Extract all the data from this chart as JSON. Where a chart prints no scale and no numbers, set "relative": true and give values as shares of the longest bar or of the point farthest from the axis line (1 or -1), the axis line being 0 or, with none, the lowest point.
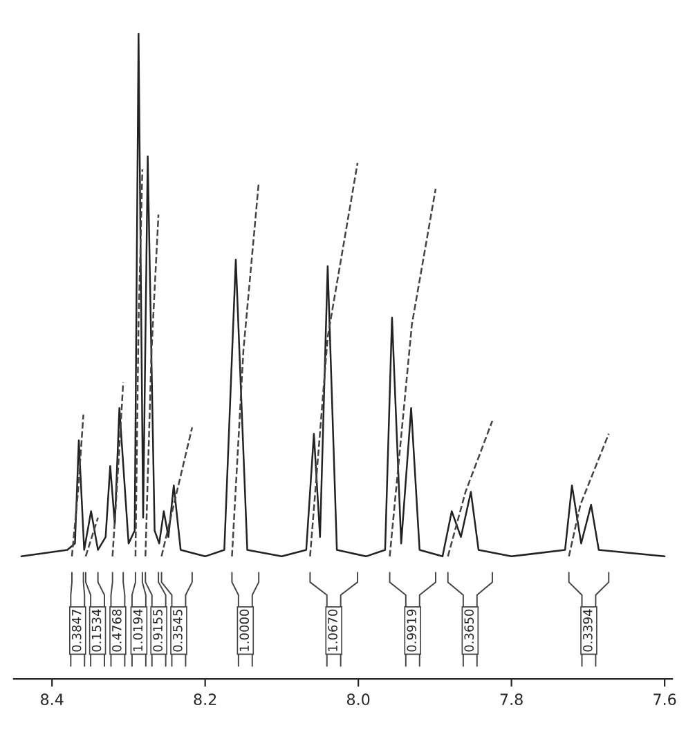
{
  "chart_data": {
    "type": "line",
    "relative": true,
    "xlim": [
      8.45,
      7.59
    ],
    "xticks": [
      8.4,
      8.2,
      {
        "value": 8.0,
        "label": "8.0"
      },
      7.8,
      7.6
    ],
    "tick_labels": "x",
    "grid": false,
    "marker": "none",
    "line_style": "solid",
    "series": [
      {
        "color": "#222222",
        "x": [
          8.44,
          8.38,
          8.37,
          8.365,
          8.358,
          8.349,
          8.34,
          8.33,
          8.324,
          8.318,
          8.312,
          8.3,
          8.292,
          8.287,
          8.281,
          8.275,
          8.266,
          8.26,
          8.254,
          8.248,
          8.241,
          8.232,
          8.2,
          8.175,
          8.16,
          8.145,
          8.1,
          8.068,
          8.058,
          8.05,
          8.04,
          8.028,
          7.99,
          7.965,
          7.956,
          7.944,
          7.931,
          7.92,
          7.89,
          7.878,
          7.866,
          7.853,
          7.843,
          7.8,
          7.73,
          7.721,
          7.709,
          7.696,
          7.686,
          7.6
        ],
        "values": [
          0.19,
          0.2,
          0.21,
          0.37,
          0.2,
          0.26,
          0.2,
          0.22,
          0.33,
          0.24,
          0.42,
          0.21,
          0.23,
          1.0,
          0.25,
          0.81,
          0.23,
          0.21,
          0.26,
          0.22,
          0.3,
          0.2,
          0.19,
          0.2,
          0.65,
          0.2,
          0.19,
          0.2,
          0.38,
          0.22,
          0.64,
          0.2,
          0.19,
          0.2,
          0.56,
          0.21,
          0.42,
          0.2,
          0.19,
          0.26,
          0.22,
          0.29,
          0.2,
          0.19,
          0.2,
          0.3,
          0.21,
          0.27,
          0.2,
          0.19
        ]
      },
      {
        "color": "#444444",
        "line_style": "dashed",
        "x": [
          8.374,
          8.366,
          8.359,
          8.357,
          8.356,
          8.348,
          8.34,
          8.33,
          8.321,
          8.314,
          8.307,
          8.299,
          8.291,
          8.287,
          8.282,
          8.28,
          8.278,
          8.27,
          8.261,
          8.259,
          8.257,
          8.237,
          8.217,
          8.19,
          8.165,
          8.15,
          8.13,
          8.1,
          8.063,
          8.04,
          8.001,
          7.98,
          7.959,
          7.93,
          7.899,
          7.89,
          7.883,
          7.86,
          7.825,
          7.78,
          7.725,
          7.71,
          7.673
        ],
        "values": [
          0.19,
          0.29,
          0.41,
          null,
          0.19,
          0.22,
          0.25,
          null,
          0.19,
          0.32,
          0.46,
          null,
          0.19,
          0.55,
          0.79,
          null,
          0.19,
          0.51,
          0.72,
          null,
          0.19,
          0.29,
          0.39,
          null,
          0.19,
          0.51,
          0.77,
          null,
          0.19,
          0.53,
          0.8,
          null,
          0.19,
          0.55,
          0.76,
          null,
          0.19,
          0.29,
          0.4,
          null,
          0.19,
          0.27,
          0.38
        ]
      }
    ],
    "annotations": [
      "0.3847",
      "0.1534",
      "0.4768",
      "1.0194",
      "0.9155",
      "0.3545",
      "1.0000",
      "1.0670",
      "0.9919",
      "0.3650",
      "0.3394"
    ]
  }
}
